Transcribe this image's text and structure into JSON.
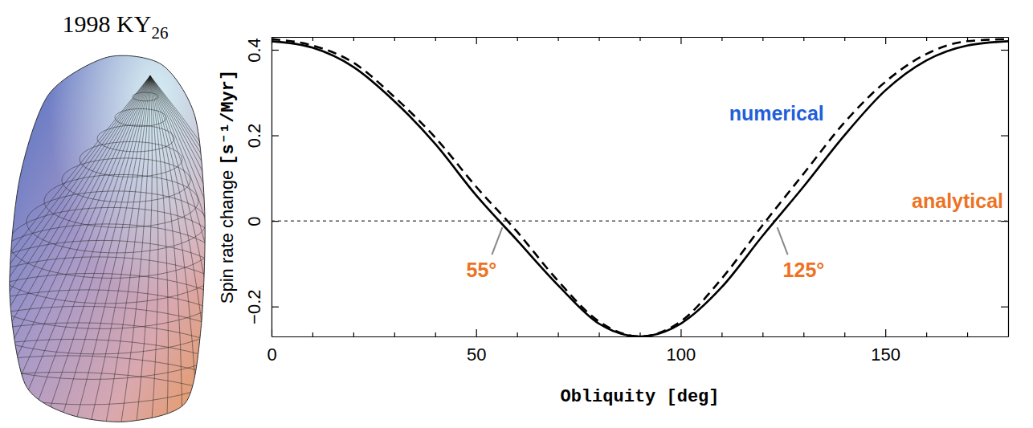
{
  "shape_model": {
    "title": "1998 KY",
    "title_subscript": "26"
  },
  "chart_data": {
    "type": "line",
    "x_label": "Obliquity [deg]",
    "y_label": "Spin rate change [s⁻¹/Myr]",
    "x": [
      0,
      10,
      20,
      30,
      40,
      50,
      60,
      70,
      80,
      90,
      100,
      110,
      120,
      130,
      140,
      150,
      160,
      170,
      180
    ],
    "series": [
      {
        "name": "numerical",
        "color": "#000000",
        "line_style": "solid",
        "values": [
          0.42,
          0.405,
          0.36,
          0.28,
          0.18,
          0.06,
          -0.045,
          -0.15,
          -0.24,
          -0.27,
          -0.24,
          -0.155,
          -0.035,
          0.08,
          0.2,
          0.305,
          0.375,
          0.41,
          0.42
        ]
      },
      {
        "name": "analytical",
        "color": "#000000",
        "line_style": "dashed",
        "values": [
          0.425,
          0.41,
          0.37,
          0.29,
          0.195,
          0.08,
          -0.025,
          -0.14,
          -0.235,
          -0.27,
          -0.235,
          -0.135,
          -0.01,
          0.11,
          0.23,
          0.325,
          0.39,
          0.42,
          0.425
        ]
      }
    ],
    "xlim": [
      0,
      180
    ],
    "ylim": [
      -0.27,
      0.43
    ],
    "xticks": [
      0,
      50,
      100,
      150
    ],
    "xticks_minor": [
      10,
      20,
      30,
      40,
      60,
      70,
      80,
      90,
      110,
      120,
      130,
      140,
      160,
      170
    ],
    "yticks": [
      {
        "value": -0.2,
        "label": "−0.2"
      },
      0,
      0.2,
      0.4
    ],
    "hline": 0,
    "annotations": [
      {
        "text": "55°",
        "x": 57,
        "y": 0
      },
      {
        "text": "125°",
        "x": 123,
        "y": 0
      }
    ],
    "grid": false
  }
}
